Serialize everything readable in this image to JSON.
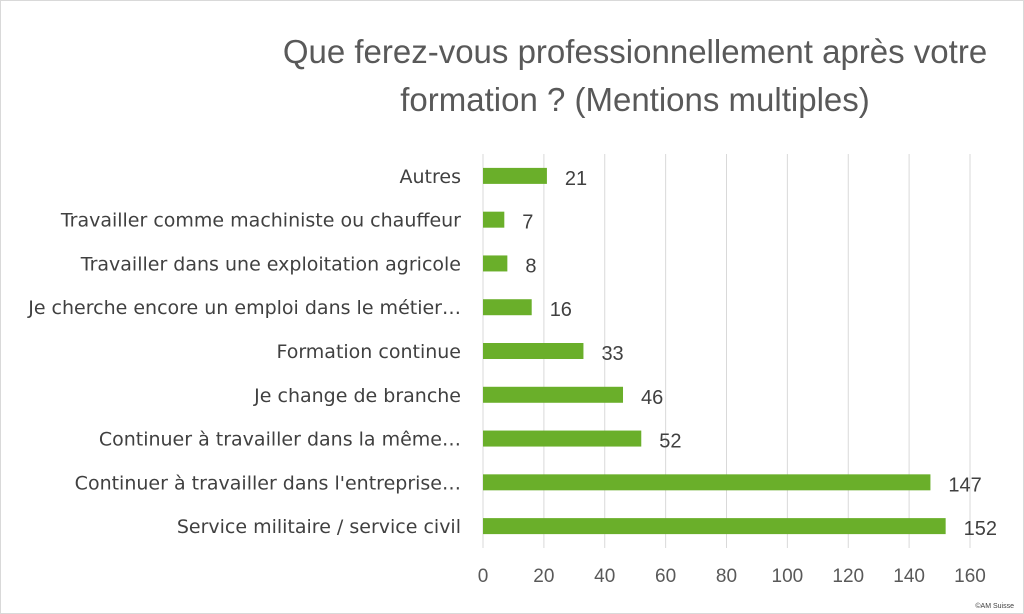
{
  "chart_data": {
    "type": "bar",
    "orientation": "horizontal",
    "title": "Que ferez-vous professionnellement après votre formation ? (Mentions multiples)",
    "categories": [
      "Autres",
      "Travailler comme machiniste ou chauffeur",
      "Travailler dans une exploitation agricole",
      "Je cherche encore un emploi dans le métier…",
      "Formation continue",
      "Je change de branche",
      "Continuer à travailler dans la même…",
      "Continuer à travailler dans l'entreprise…",
      "Service militaire / service civil"
    ],
    "values": [
      21,
      7,
      8,
      16,
      33,
      46,
      52,
      147,
      152
    ],
    "xlim": [
      0,
      160
    ],
    "xticks": [
      "0",
      "20",
      "40",
      "60",
      "80",
      "100",
      "120",
      "140",
      "160"
    ],
    "grid": true,
    "bar_color": "#6aaf2a",
    "gridline_color": "#d9d9d9"
  },
  "credit": "©AM Suisse"
}
